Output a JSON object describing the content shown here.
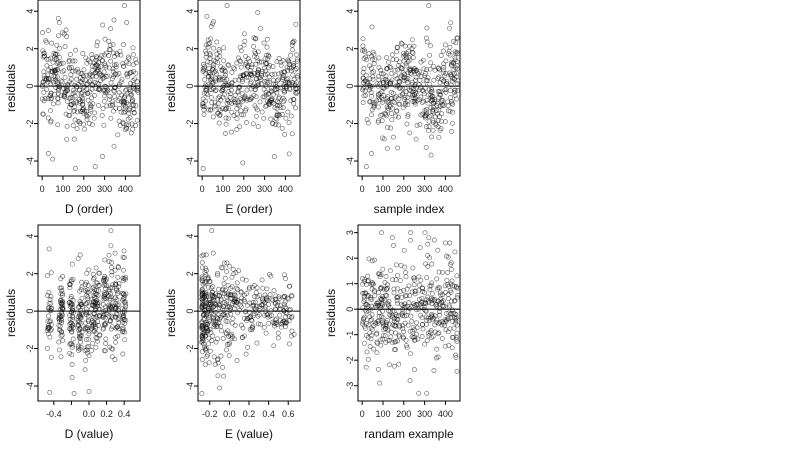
{
  "figure": {
    "panels": [
      {
        "id": "p1",
        "xlabel": "D (order)",
        "ylabel": "residuals",
        "x_ticks": [
          0,
          100,
          200,
          300,
          400
        ],
        "x_tick_labels": [
          "0",
          "100",
          "200",
          "300",
          "400"
        ],
        "y_ticks": [
          -4,
          -2,
          0,
          2,
          4
        ],
        "y_tick_labels": [
          "-4",
          "-2",
          "0",
          "2",
          "4"
        ]
      },
      {
        "id": "p2",
        "xlabel": "E (order)",
        "ylabel": "residuals",
        "x_ticks": [
          0,
          100,
          200,
          300,
          400
        ],
        "x_tick_labels": [
          "0",
          "100",
          "200",
          "300",
          "400"
        ],
        "y_ticks": [
          -4,
          -2,
          0,
          2,
          4
        ],
        "y_tick_labels": [
          "-4",
          "-2",
          "0",
          "2",
          "4"
        ]
      },
      {
        "id": "p3",
        "xlabel": "sample index",
        "ylabel": "residuals",
        "x_ticks": [
          0,
          100,
          200,
          300,
          400
        ],
        "x_tick_labels": [
          "0",
          "100",
          "200",
          "300",
          "400"
        ],
        "y_ticks": [
          -4,
          -2,
          0,
          2,
          4
        ],
        "y_tick_labels": [
          "-4",
          "-2",
          "0",
          "2",
          "4"
        ]
      },
      {
        "id": "p4",
        "xlabel": "D (value)",
        "ylabel": "residuals",
        "x_ticks": [
          -0.4,
          -0.2,
          0.0,
          0.2,
          0.4
        ],
        "x_tick_labels": [
          "-0.4",
          "",
          "0.0",
          "0.2",
          "0.4"
        ],
        "y_ticks": [
          -4,
          -2,
          0,
          2,
          4
        ],
        "y_tick_labels": [
          "-4",
          "-2",
          "0",
          "2",
          "4"
        ]
      },
      {
        "id": "p5",
        "xlabel": "E (value)",
        "ylabel": "residuals",
        "x_ticks": [
          -0.2,
          0.0,
          0.2,
          0.4,
          0.6
        ],
        "x_tick_labels": [
          "-0.2",
          "0.0",
          "0.2",
          "0.4",
          "0.6"
        ],
        "y_ticks": [
          -4,
          -2,
          0,
          2,
          4
        ],
        "y_tick_labels": [
          "-4",
          "-2",
          "0",
          "2",
          "4"
        ]
      },
      {
        "id": "p6",
        "xlabel": "randam example",
        "ylabel": "residuals",
        "x_ticks": [
          0,
          100,
          200,
          300,
          400
        ],
        "x_tick_labels": [
          "0",
          "100",
          "200",
          "300",
          "400"
        ],
        "y_ticks": [
          -3,
          -2,
          -1,
          0,
          1,
          2,
          3
        ],
        "y_tick_labels": [
          "-3",
          "-2",
          "-1",
          "0",
          "1",
          "2",
          "3"
        ]
      }
    ]
  },
  "chart_data": [
    {
      "type": "scatter",
      "xlabel": "D (order)",
      "ylabel": "residuals",
      "xlim": [
        -20,
        470
      ],
      "ylim": [
        -4.8,
        4.6
      ],
      "reference_line_y": 0,
      "n_points": 460,
      "seed": 11,
      "points_sample": [
        [
          115,
          3.0
        ],
        [
          395,
          4.3
        ],
        [
          160,
          -4.4
        ],
        [
          255,
          -4.3
        ],
        [
          30,
          -3.6
        ],
        [
          50,
          -3.9
        ]
      ]
    },
    {
      "type": "scatter",
      "xlabel": "E (order)",
      "ylabel": "residuals",
      "xlim": [
        -20,
        470
      ],
      "ylim": [
        -4.8,
        4.6
      ],
      "reference_line_y": 0,
      "n_points": 460,
      "seed": 23,
      "points_sample": [
        [
          120,
          4.3
        ],
        [
          5,
          -4.4
        ],
        [
          195,
          -4.1
        ],
        [
          205,
          2.4
        ]
      ]
    },
    {
      "type": "scatter",
      "xlabel": "sample index",
      "ylabel": "residuals",
      "xlim": [
        -20,
        470
      ],
      "ylim": [
        -4.8,
        4.6
      ],
      "reference_line_y": 0,
      "n_points": 460,
      "seed": 37,
      "points_sample": [
        [
          320,
          4.3
        ],
        [
          20,
          -4.3
        ],
        [
          45,
          -3.6
        ],
        [
          400,
          2.2
        ]
      ]
    },
    {
      "type": "scatter",
      "xlabel": "D (value)",
      "ylabel": "residuals",
      "xlim": [
        -0.58,
        0.58
      ],
      "ylim": [
        -4.8,
        4.6
      ],
      "reference_line_y": 0,
      "n_points": 460,
      "seed": 41,
      "clusters_x": [
        -0.45,
        -0.32,
        -0.2,
        -0.1,
        -0.02,
        0.05,
        0.1,
        0.18,
        0.25,
        0.32,
        0.4
      ],
      "points_sample": [
        [
          0.25,
          4.3
        ],
        [
          -0.17,
          -4.4
        ],
        [
          0.0,
          -4.3
        ],
        [
          -0.1,
          3.0
        ]
      ]
    },
    {
      "type": "scatter",
      "xlabel": "E (value)",
      "ylabel": "residuals",
      "xlim": [
        -0.32,
        0.72
      ],
      "ylim": [
        -4.8,
        4.6
      ],
      "reference_line_y": 0,
      "n_points": 460,
      "seed": 53,
      "points_sample": [
        [
          -0.18,
          4.3
        ],
        [
          -0.28,
          -4.4
        ],
        [
          -0.1,
          -4.1
        ],
        [
          0.0,
          2.4
        ]
      ]
    },
    {
      "type": "scatter",
      "xlabel": "randam example",
      "ylabel": "residuals",
      "xlim": [
        -20,
        470
      ],
      "ylim": [
        -3.6,
        3.3
      ],
      "reference_line_y": 0,
      "n_points": 460,
      "seed": 67,
      "points_sample": [
        [
          320,
          2.8
        ],
        [
          310,
          -3.3
        ],
        [
          230,
          -2.8
        ],
        [
          400,
          2.6
        ]
      ]
    }
  ]
}
